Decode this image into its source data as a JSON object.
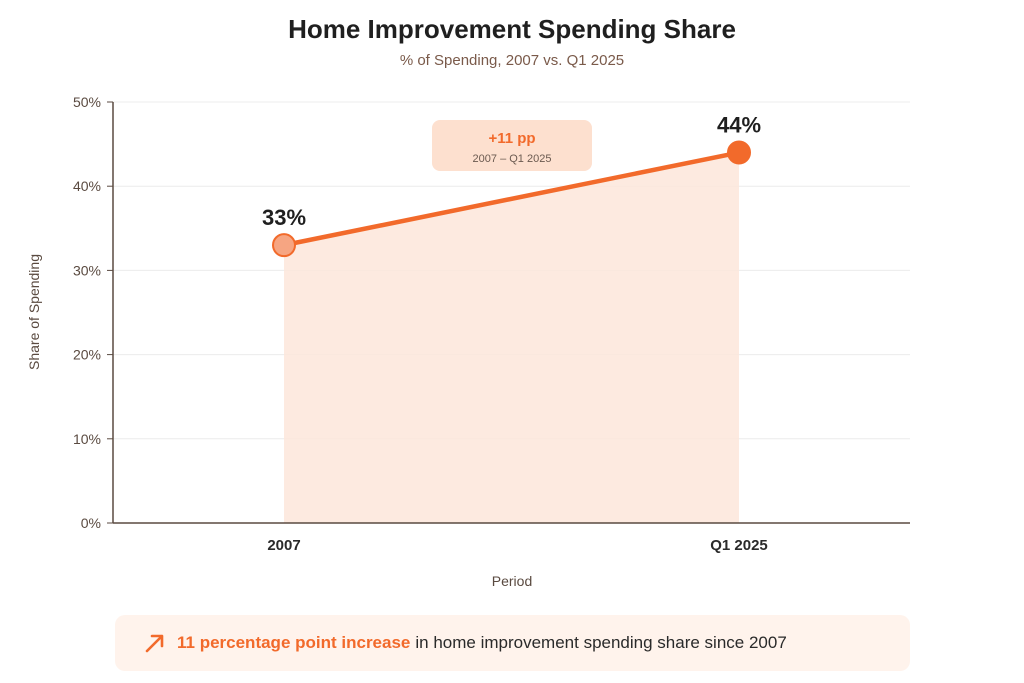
{
  "header": {
    "title": "Home Improvement Spending Share",
    "subtitle": "% of Spending, 2007 vs. Q1 2025"
  },
  "chart_data": {
    "type": "line",
    "title": "Home Improvement Spending Share",
    "subtitle": "% of Spending, 2007 vs. Q1 2025",
    "xlabel": "Period",
    "ylabel": "Share of Spending",
    "categories": [
      "2007",
      "Q1 2025"
    ],
    "values": [
      33,
      44
    ],
    "data_labels": [
      "33%",
      "44%"
    ],
    "ylim": [
      0,
      50
    ],
    "yticks": [
      0,
      10,
      20,
      30,
      40,
      50
    ],
    "ytick_labels": [
      "0%",
      "10%",
      "20%",
      "30%",
      "40%",
      "50%"
    ],
    "grid": true,
    "area_fill": true,
    "annotation": {
      "value": "+11 pp",
      "range": "2007 – Q1 2025"
    }
  },
  "callout": {
    "highlight": "11 percentage point increase",
    "text": "in home improvement spending share since 2007",
    "icon": "trend-up-arrow-icon"
  },
  "colors": {
    "accent": "#f26a2b",
    "point_start": "#f6a582",
    "area": "#fde6da",
    "annotation_bg": "#fde0cf",
    "callout_bg": "#fff3ec"
  }
}
